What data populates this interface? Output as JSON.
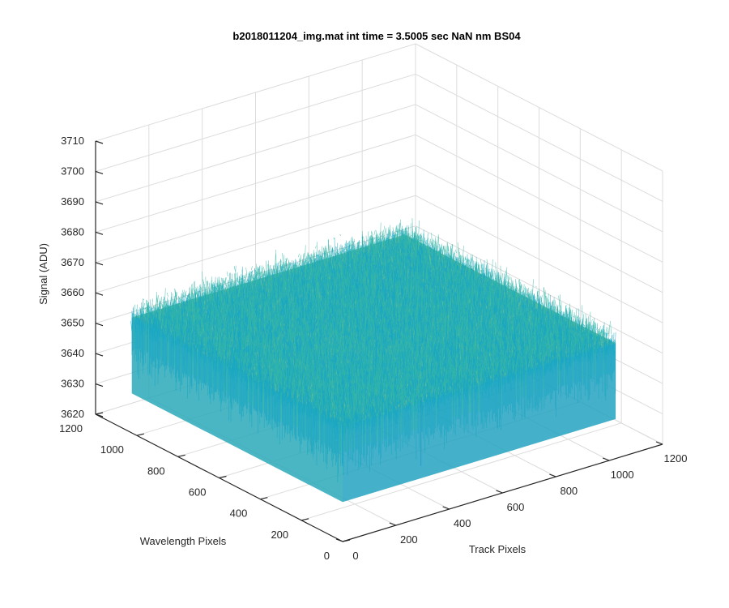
{
  "chart_data": {
    "type": "surface",
    "title": "b2018011204_img.mat int time = 3.5005 sec  NaN nm BS04",
    "xlabel": "Track Pixels",
    "ylabel": "Wavelength Pixels",
    "zlabel": "Signal (ADU)",
    "xlim": [
      0,
      1200
    ],
    "ylim": [
      0,
      1200
    ],
    "zlim": [
      3620,
      3710
    ],
    "xticks": [
      0,
      200,
      400,
      600,
      800,
      1000,
      1200
    ],
    "yticks": [
      0,
      200,
      400,
      600,
      800,
      1000,
      1200
    ],
    "zticks": [
      3620,
      3630,
      3640,
      3650,
      3660,
      3670,
      3680,
      3690,
      3700,
      3710
    ],
    "xticklabels": [
      "0",
      "200",
      "400",
      "600",
      "800",
      "1000",
      "1200"
    ],
    "yticklabels": [
      "0",
      "200",
      "400",
      "600",
      "800",
      "1000",
      "1200"
    ],
    "zticklabels": [
      "3620",
      "3630",
      "3640",
      "3650",
      "3660",
      "3670",
      "3680",
      "3690",
      "3700",
      "3710"
    ],
    "data_extent": {
      "x": [
        0,
        1024
      ],
      "y": [
        0,
        1024
      ]
    },
    "signal_mean": 3658,
    "signal_range": [
      3625,
      3705
    ],
    "grid": true,
    "colormap": [
      "#0072bd",
      "#0a8fd0",
      "#1aa7c3",
      "#35b7a6",
      "#78c26f",
      "#b8c94a",
      "#e2c53a"
    ]
  }
}
